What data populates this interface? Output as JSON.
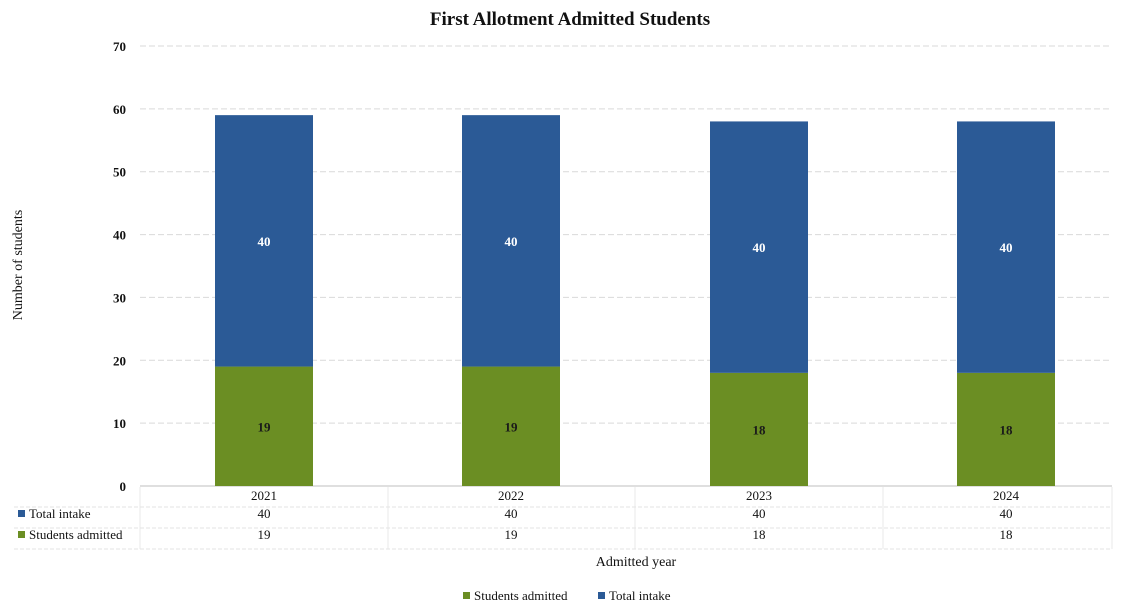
{
  "chart_data": {
    "type": "bar",
    "stacked": true,
    "title": "First Allotment Admitted Students",
    "xlabel": "Admitted year",
    "ylabel": "Number of students",
    "ylim": [
      0,
      70
    ],
    "yticks": [
      "0",
      "10",
      "20",
      "30",
      "40",
      "50",
      "60",
      "70"
    ],
    "grid": true,
    "categories": [
      "2021",
      "2022",
      "2023",
      "2024"
    ],
    "series": [
      {
        "name": "Students admitted",
        "color": "#6b8e23",
        "values": [
          19,
          19,
          18,
          18
        ]
      },
      {
        "name": "Total intake",
        "color": "#2b5a96",
        "values": [
          40,
          40,
          40,
          40
        ]
      }
    ],
    "data_table": {
      "rows": [
        {
          "name": "Total intake",
          "color": "#2b5a96",
          "values": [
            "40",
            "40",
            "40",
            "40"
          ]
        },
        {
          "name": "Students admitted",
          "color": "#6b8e23",
          "values": [
            "19",
            "19",
            "18",
            "18"
          ]
        }
      ]
    },
    "legend": {
      "position": "bottom",
      "items": [
        {
          "name": "Students admitted",
          "color": "#6b8e23"
        },
        {
          "name": "Total intake",
          "color": "#2b5a96"
        }
      ]
    }
  }
}
